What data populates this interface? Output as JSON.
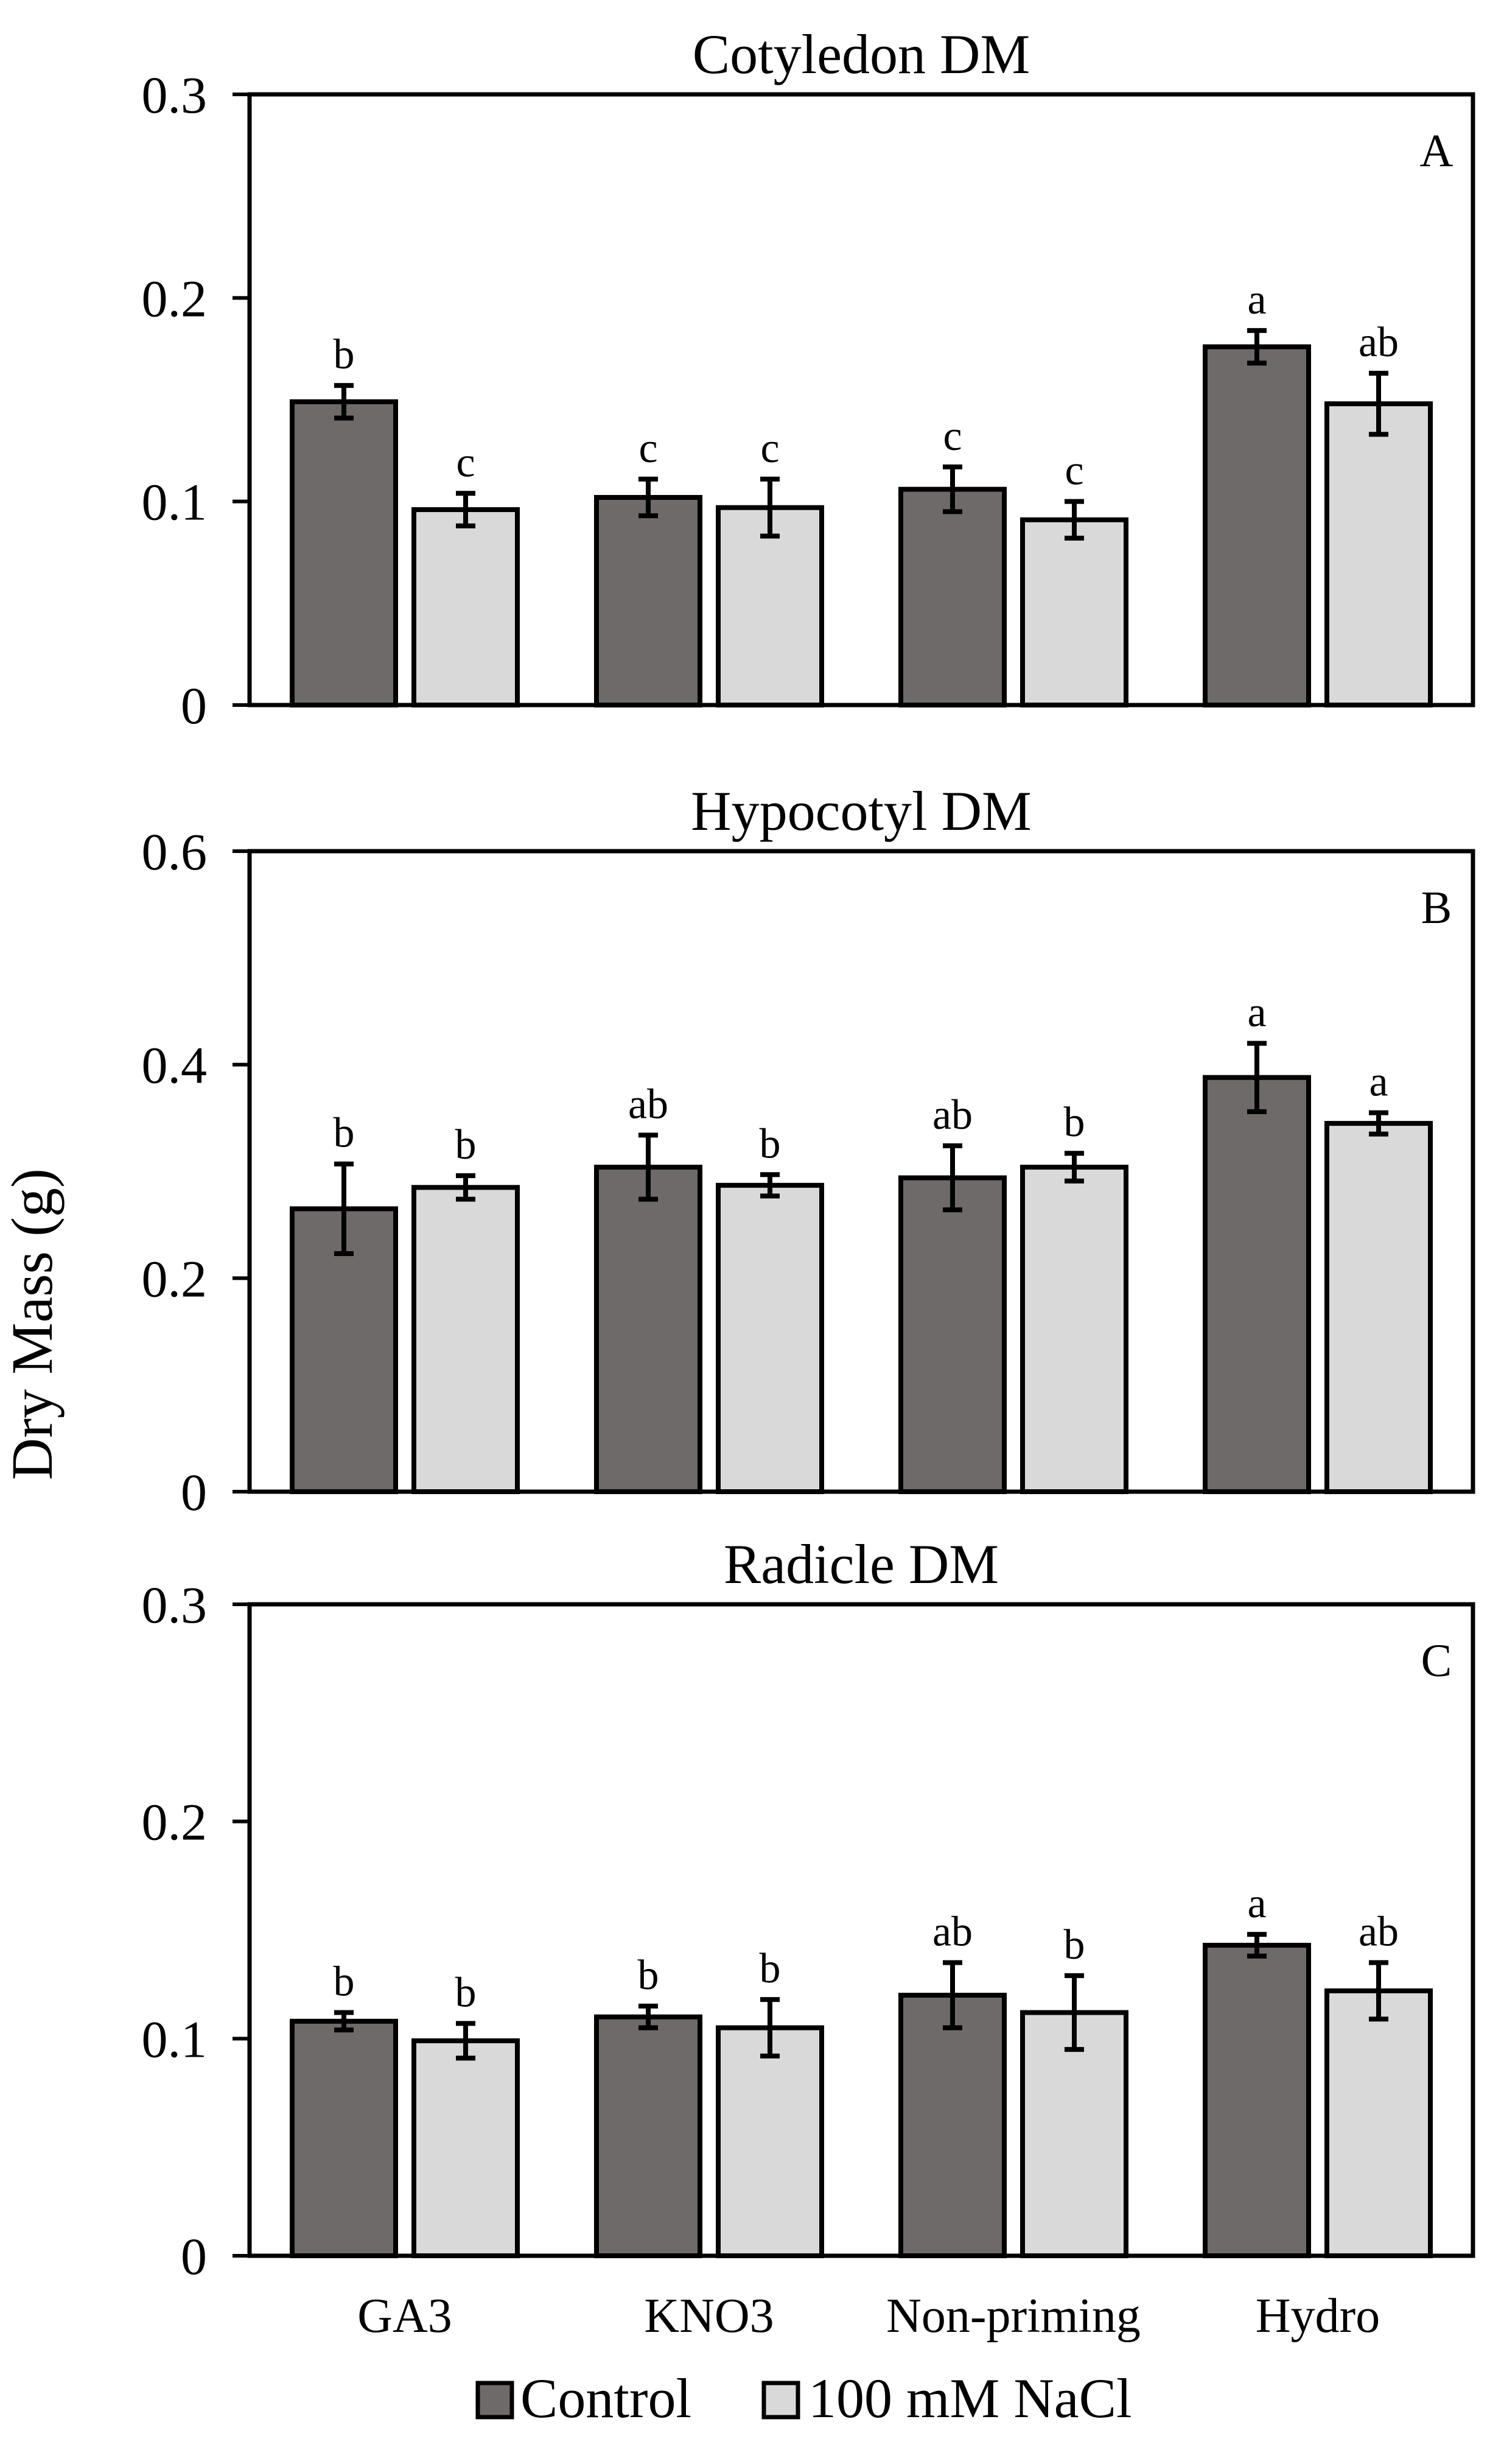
{
  "ylabel": "Dry Mass (g)",
  "categories": [
    "GA3",
    "KNO3",
    "Non-priming",
    "Hydro"
  ],
  "legend": [
    {
      "name": "Control",
      "color": "#6e6a69"
    },
    {
      "name": "100 mM NaCl",
      "color": "#d9d9d9"
    }
  ],
  "chart_data": [
    {
      "type": "bar",
      "title": "Cotyledon   DM",
      "panel_label": "A",
      "xlabel": "",
      "ylabel": "Dry Mass (g)",
      "ylim": [
        0,
        0.3
      ],
      "yticks": [
        0,
        0.1,
        0.2,
        0.3
      ],
      "ytick_labels": [
        "0",
        "0.1",
        "0.2",
        "0.3"
      ],
      "categories": [
        "GA3",
        "KNO3",
        "Non-priming",
        "Hydro"
      ],
      "series": [
        {
          "name": "Control",
          "values": [
            0.149,
            0.102,
            0.106,
            0.176
          ],
          "errors": [
            0.008,
            0.009,
            0.011,
            0.008
          ],
          "letters": [
            "b",
            "c",
            "c",
            "a"
          ]
        },
        {
          "name": "100 mM NaCl",
          "values": [
            0.096,
            0.097,
            0.091,
            0.148
          ],
          "errors": [
            0.008,
            0.014,
            0.009,
            0.015
          ],
          "letters": [
            "c",
            "c",
            "c",
            "ab"
          ]
        }
      ]
    },
    {
      "type": "bar",
      "title": "Hypocotyl  DM",
      "panel_label": "B",
      "xlabel": "",
      "ylabel": "Dry Mass (g)",
      "ylim": [
        0,
        0.6
      ],
      "yticks": [
        0,
        0.2,
        0.4,
        0.6
      ],
      "ytick_labels": [
        "0",
        "0.2",
        "0.4",
        "0.6"
      ],
      "categories": [
        "GA3",
        "KNO3",
        "Non-priming",
        "Hydro"
      ],
      "series": [
        {
          "name": "Control",
          "values": [
            0.265,
            0.304,
            0.294,
            0.388
          ],
          "errors": [
            0.042,
            0.03,
            0.03,
            0.032
          ],
          "letters": [
            "b",
            "ab",
            "ab",
            "a"
          ]
        },
        {
          "name": "100 mM NaCl",
          "values": [
            0.285,
            0.287,
            0.304,
            0.345
          ],
          "errors": [
            0.011,
            0.01,
            0.013,
            0.01
          ],
          "letters": [
            "b",
            "b",
            "b",
            "a"
          ]
        }
      ]
    },
    {
      "type": "bar",
      "title": "Radicle   DM",
      "panel_label": "C",
      "xlabel": "",
      "ylabel": "Dry Mass (g)",
      "ylim": [
        0,
        0.3
      ],
      "yticks": [
        0,
        0.1,
        0.2,
        0.3
      ],
      "ytick_labels": [
        "0",
        "0.1",
        "0.2",
        "0.3"
      ],
      "categories": [
        "GA3",
        "KNO3",
        "Non-priming",
        "Hydro"
      ],
      "series": [
        {
          "name": "Control",
          "values": [
            0.108,
            0.11,
            0.12,
            0.143
          ],
          "errors": [
            0.004,
            0.005,
            0.015,
            0.005
          ],
          "letters": [
            "b",
            "b",
            "ab",
            "a"
          ]
        },
        {
          "name": "100 mM NaCl",
          "values": [
            0.099,
            0.105,
            0.112,
            0.122
          ],
          "errors": [
            0.008,
            0.013,
            0.017,
            0.013
          ],
          "letters": [
            "b",
            "b",
            "b",
            "ab"
          ]
        }
      ]
    }
  ]
}
